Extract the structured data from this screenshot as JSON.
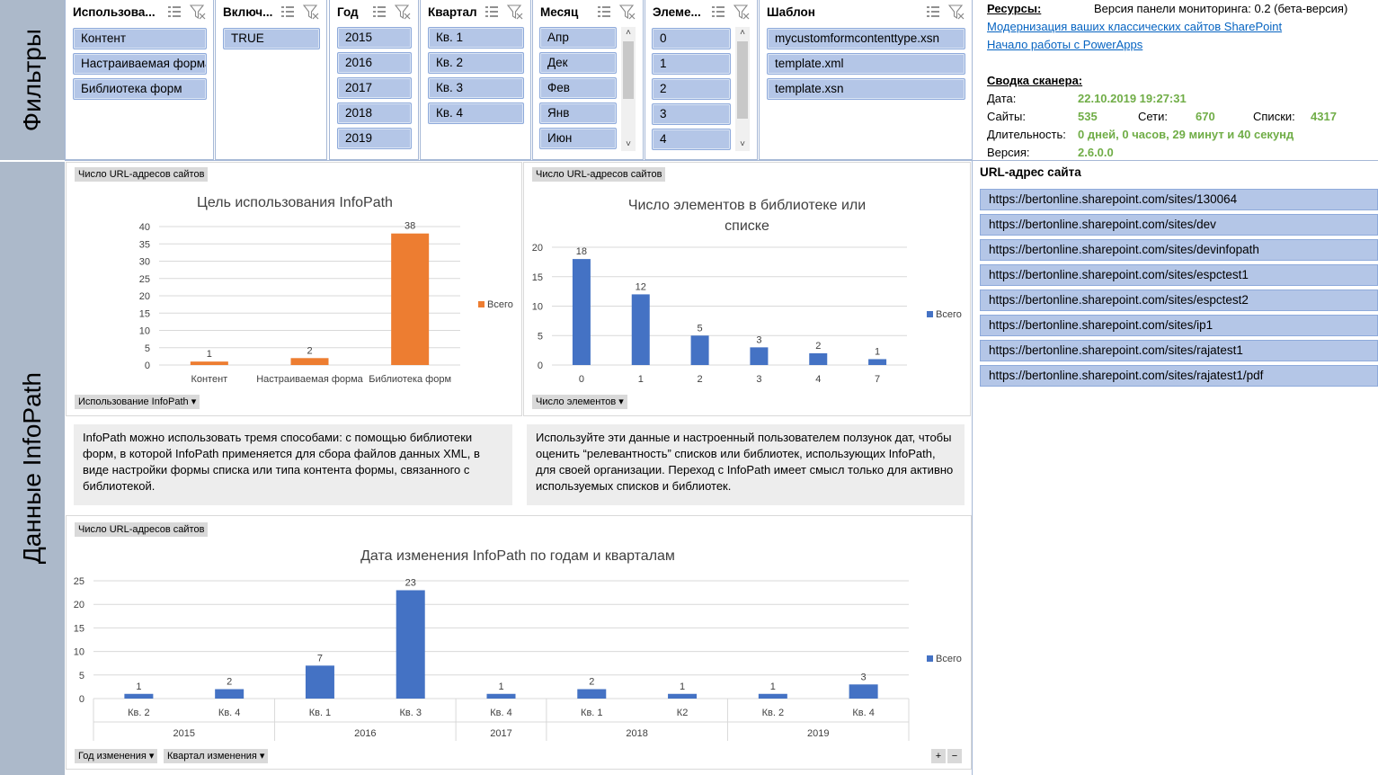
{
  "side_labels": {
    "filters": "Фильтры",
    "data": "Данные InfoPath"
  },
  "slicers": {
    "usage": {
      "title": "Использова...",
      "items": [
        "Контент",
        "Настраиваемая форма",
        "Библиотека форм"
      ]
    },
    "enabled": {
      "title": "Включ...",
      "items": [
        "TRUE"
      ]
    },
    "year": {
      "title": "Год",
      "items": [
        "2015",
        "2016",
        "2017",
        "2018",
        "2019"
      ]
    },
    "quarter": {
      "title": "Квартал",
      "items": [
        "Кв. 1",
        "Кв. 2",
        "Кв. 3",
        "Кв. 4"
      ]
    },
    "month": {
      "title": "Месяц",
      "items": [
        "Апр",
        "Дек",
        "Фев",
        "Янв",
        "Июн"
      ]
    },
    "elements": {
      "title": "Элеме...",
      "items": [
        "0",
        "1",
        "2",
        "3",
        "4"
      ]
    },
    "template": {
      "title": "Шаблон",
      "items": [
        "mycustomformcontenttype.xsn",
        "template.xml",
        "template.xsn"
      ]
    }
  },
  "resources": {
    "label": "Ресурсы:",
    "version_text": "Версия панели мониторинга: 0.2 (бета-версия)",
    "link1": "Модернизация ваших классических сайтов SharePoint",
    "link2": "Начало работы с PowerApps",
    "summary_label": "Сводка сканера:",
    "date_label": "Дата:",
    "date_value": "22.10.2019 19:27:31",
    "sites_label": "Сайты:",
    "sites_value": "535",
    "webs_label": "Сети:",
    "webs_value": "670",
    "lists_label": "Списки:",
    "lists_value": "4317",
    "duration_label": "Длительность:",
    "duration_value": "0 дней, 0 часов, 29 минут и 40 секунд",
    "version_label": "Версия:",
    "version_value": "2.6.0.0"
  },
  "chart1": {
    "field_top": "Число URL-адресов сайтов",
    "field_bottom": "Использование InfoPath",
    "legend": "Всего",
    "colors": {
      "bar": "#ed7d31"
    }
  },
  "chart2": {
    "field_top": "Число URL-адресов сайтов",
    "field_bottom": "Число элементов",
    "legend": "Всего",
    "colors": {
      "bar": "#4472c4"
    }
  },
  "chart3": {
    "field_top": "Число URL-адресов сайтов",
    "field_year": "Год изменения",
    "field_quarter": "Квартал изменения",
    "legend": "Всего",
    "plus": "+",
    "minus": "−",
    "colors": {
      "bar": "#4472c4"
    }
  },
  "notes": {
    "left": "InfoPath можно использовать тремя способами: с помощью библиотеки форм, в которой InfoPath применяется для сбора файлов данных XML, в виде настройки формы списка или типа контента формы, связанного с библиотекой.",
    "right": "Используйте эти данные и настроенный пользователем ползунок дат, чтобы оценить “релевантность” списков или библиотек, использующих InfoPath, для своей организации. Переход с InfoPath имеет смысл только для активно используемых списков и библиотек."
  },
  "url_slicer": {
    "title": "URL-адрес сайта",
    "items": [
      "https://bertonline.sharepoint.com/sites/130064",
      "https://bertonline.sharepoint.com/sites/dev",
      "https://bertonline.sharepoint.com/sites/devinfopath",
      "https://bertonline.sharepoint.com/sites/espctest1",
      "https://bertonline.sharepoint.com/sites/espctest2",
      "https://bertonline.sharepoint.com/sites/ip1",
      "https://bertonline.sharepoint.com/sites/rajatest1",
      "https://bertonline.sharepoint.com/sites/rajatest1/pdf"
    ]
  },
  "chart_data": [
    {
      "type": "bar",
      "title": "Цель использования InfoPath",
      "categories": [
        "Контент",
        "Настраиваемая форма",
        "Библиотека форм"
      ],
      "series": [
        {
          "name": "Всего",
          "values": [
            1,
            2,
            38
          ]
        }
      ],
      "ylim": [
        0,
        40
      ],
      "yticks": [
        0,
        5,
        10,
        15,
        20,
        25,
        30,
        35,
        40
      ],
      "legend": "right"
    },
    {
      "type": "bar",
      "title": "Число элементов в библиотеке или списке",
      "categories": [
        "0",
        "1",
        "2",
        "3",
        "4",
        "7"
      ],
      "series": [
        {
          "name": "Всего",
          "values": [
            18,
            12,
            5,
            3,
            2,
            1
          ]
        }
      ],
      "ylim": [
        0,
        20
      ],
      "yticks": [
        0,
        5,
        10,
        15,
        20
      ],
      "legend": "right"
    },
    {
      "type": "bar",
      "title": "Дата изменения InfoPath по годам и кварталам",
      "categories": [
        "Кв. 2",
        "Кв. 4",
        "Кв. 1",
        "Кв. 3",
        "Кв. 4",
        "Кв. 1",
        "К2",
        "Кв. 2",
        "Кв. 4"
      ],
      "groups": [
        {
          "label": "2015",
          "count": 2
        },
        {
          "label": "2016",
          "count": 2
        },
        {
          "label": "2017",
          "count": 1
        },
        {
          "label": "2018",
          "count": 2
        },
        {
          "label": "2019",
          "count": 2
        }
      ],
      "series": [
        {
          "name": "Всего",
          "values": [
            1,
            2,
            7,
            23,
            1,
            2,
            1,
            1,
            3
          ]
        }
      ],
      "ylim": [
        0,
        25
      ],
      "yticks": [
        0,
        5,
        10,
        15,
        20,
        25
      ],
      "legend": "right"
    }
  ]
}
